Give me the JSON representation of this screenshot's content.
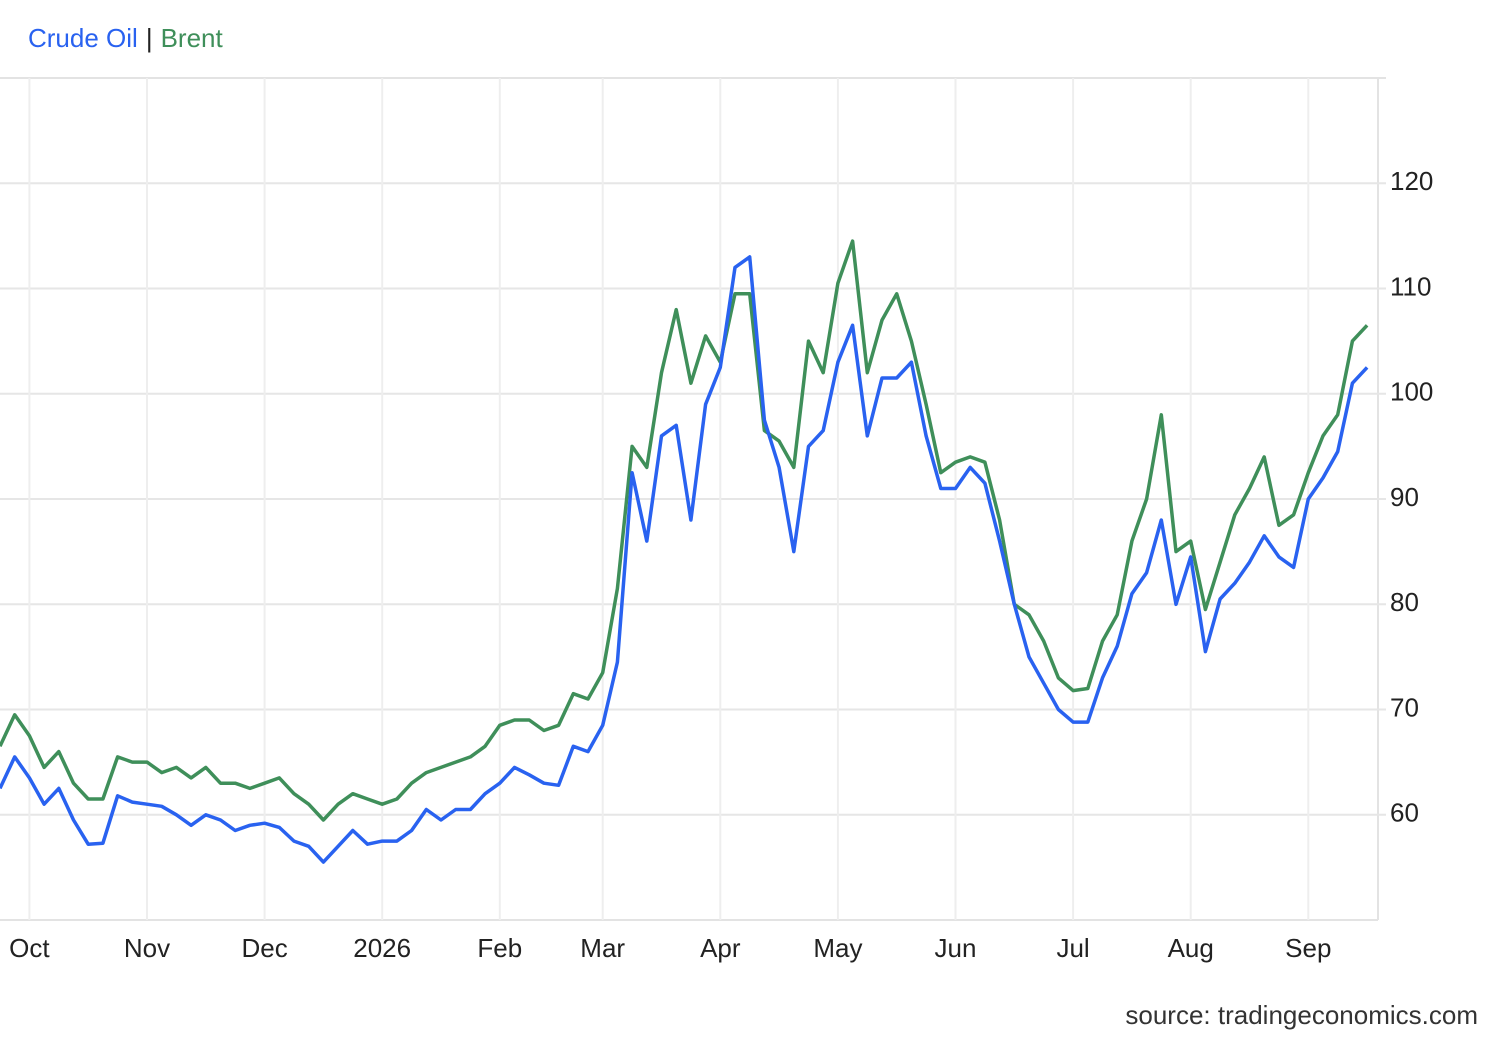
{
  "chart_data": {
    "type": "line",
    "legend_separator": "|",
    "source": "source: tradingeconomics.com",
    "categories": [
      null,
      null,
      "Oct",
      null,
      null,
      null,
      null,
      null,
      null,
      null,
      "Nov",
      null,
      null,
      null,
      null,
      null,
      null,
      null,
      "Dec",
      null,
      null,
      null,
      null,
      null,
      null,
      null,
      "2026",
      null,
      null,
      null,
      null,
      null,
      null,
      null,
      "Feb",
      null,
      null,
      null,
      null,
      null,
      null,
      "Mar",
      null,
      null,
      null,
      null,
      null,
      null,
      null,
      "Apr",
      null,
      null,
      null,
      null,
      null,
      null,
      null,
      "May",
      null,
      null,
      null,
      null,
      null,
      null,
      null,
      "Jun",
      null,
      null,
      null,
      null,
      null,
      null,
      null,
      "Jul",
      null,
      null,
      null,
      null,
      null,
      null,
      null,
      "Aug",
      null,
      null,
      null,
      null,
      null,
      null,
      null,
      "Sep",
      null,
      null,
      null,
      null
    ],
    "series": [
      {
        "name": "Crude Oil",
        "color": "#2962f0",
        "values": [
          62.5,
          65.5,
          63.5,
          61,
          62.5,
          59.5,
          57.2,
          57.3,
          61.8,
          61.2,
          61,
          60.8,
          60,
          59,
          60,
          59.5,
          58.5,
          59,
          59.2,
          58.8,
          57.5,
          57,
          55.5,
          57,
          58.5,
          57.2,
          57.5,
          57.5,
          58.5,
          60.5,
          59.5,
          60.5,
          60.5,
          62,
          63,
          64.5,
          63.8,
          63,
          62.8,
          66.5,
          66,
          68.5,
          74.5,
          92.5,
          86,
          96,
          97,
          88,
          99,
          102.5,
          112,
          113,
          97.5,
          93,
          85,
          95,
          96.5,
          103,
          106.5,
          96,
          101.5,
          101.5,
          103,
          96,
          91,
          91,
          93,
          91.5,
          86,
          80,
          75,
          72.5,
          70,
          68.8,
          68.8,
          73,
          76,
          81,
          83,
          88,
          80,
          84.5,
          75.5,
          80.5,
          82,
          84,
          86.5,
          84.5,
          83.5,
          90,
          92,
          94.5,
          101,
          102.5
        ]
      },
      {
        "name": "Brent",
        "color": "#3f8f5a",
        "values": [
          66.5,
          69.5,
          67.5,
          64.5,
          66,
          63,
          61.5,
          61.5,
          65.5,
          65,
          65,
          64,
          64.5,
          63.5,
          64.5,
          63,
          63,
          62.5,
          63,
          63.5,
          62,
          61,
          59.5,
          61,
          62,
          61.5,
          61,
          61.5,
          63,
          64,
          64.5,
          65,
          65.5,
          66.5,
          68.5,
          69,
          69,
          68,
          68.5,
          71.5,
          71,
          73.5,
          81.5,
          95,
          93,
          102,
          108,
          101,
          105.5,
          103,
          109.5,
          109.5,
          96.5,
          95.5,
          93,
          105,
          102,
          110.5,
          114.5,
          102,
          107,
          109.5,
          105,
          99,
          92.5,
          93.5,
          94,
          93.5,
          88,
          80,
          79,
          76.5,
          73,
          71.8,
          72,
          76.5,
          79,
          86,
          90,
          98,
          85,
          86,
          79.5,
          84,
          88.5,
          91,
          94,
          87.5,
          88.5,
          92.5,
          96,
          98,
          105,
          106.5
        ]
      }
    ],
    "ylim": [
      50,
      130
    ],
    "yticks": [
      60,
      70,
      80,
      90,
      100,
      110,
      120
    ],
    "grid": true,
    "y_axis_side": "right"
  }
}
